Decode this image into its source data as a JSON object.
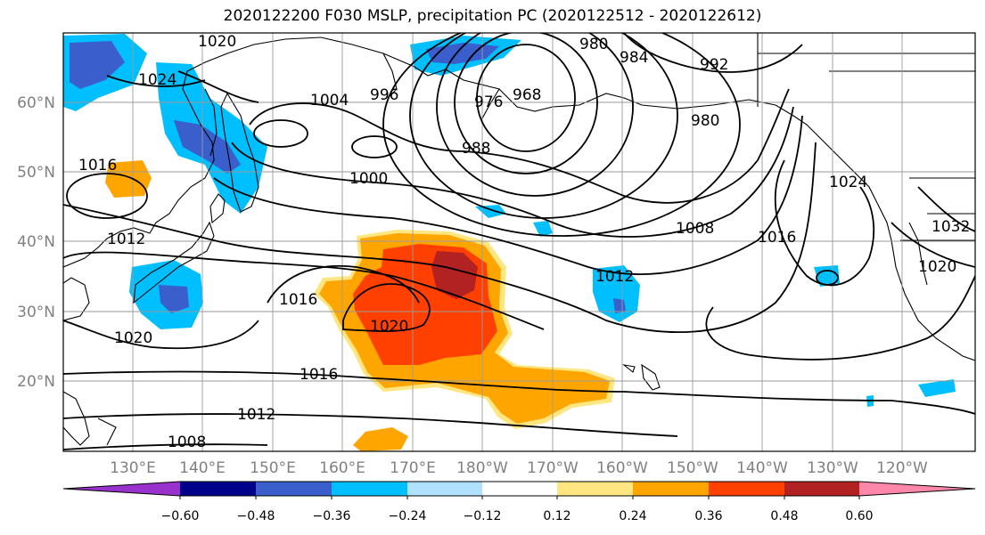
{
  "title": "2020122200 F030 MSLP, precipitation PC (2020122512 - 2020122612)",
  "lat_labels": [
    "60°N",
    "50°N",
    "40°N",
    "30°N",
    "20°N"
  ],
  "lon_labels": [
    "130°E",
    "140°E",
    "150°E",
    "160°E",
    "170°E",
    "180°W",
    "170°W",
    "160°W",
    "150°W",
    "140°W",
    "130°W",
    "120°W"
  ],
  "isobar_labels": [
    "1020",
    "1024",
    "1004",
    "996",
    "980",
    "984",
    "976",
    "968",
    "992",
    "980",
    "988",
    "1016",
    "1000",
    "1012",
    "1008",
    "1016",
    "1024",
    "1032",
    "1016",
    "1020",
    "1020",
    "1012",
    "1020",
    "1016",
    "1012",
    "1008"
  ],
  "colorbar": {
    "ticks": [
      "−0.60",
      "−0.48",
      "−0.36",
      "−0.24",
      "−0.12",
      "0.12",
      "0.24",
      "0.36",
      "0.48",
      "0.60"
    ],
    "colors": [
      "#9932cc",
      "#00008b",
      "#3a5fcd",
      "#00bfff",
      "#b0e2ff",
      "#ffffff",
      "#ffe680",
      "#ffa500",
      "#ff4000",
      "#b22222",
      "#ff88aa"
    ]
  },
  "colors": {
    "coast": "#000000",
    "grid": "#9a9a9a",
    "isobar": "#000000"
  }
}
